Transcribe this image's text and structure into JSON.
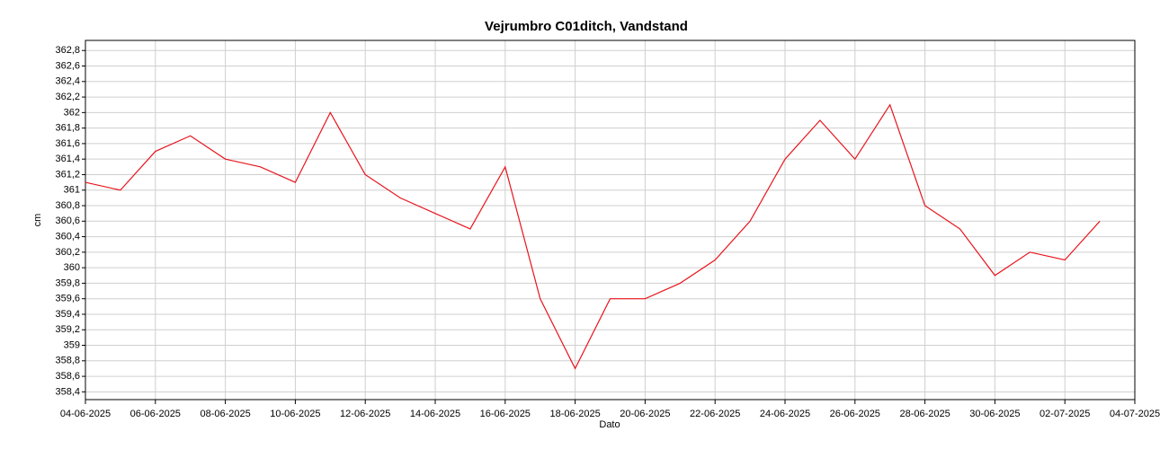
{
  "chart_data": {
    "type": "line",
    "title": "Vejrumbro C01ditch, Vandstand",
    "xlabel": "Dato",
    "ylabel": "cm",
    "x": [
      "04-06-2025",
      "05-06-2025",
      "06-06-2025",
      "07-06-2025",
      "08-06-2025",
      "09-06-2025",
      "10-06-2025",
      "11-06-2025",
      "12-06-2025",
      "13-06-2025",
      "14-06-2025",
      "15-06-2025",
      "16-06-2025",
      "17-06-2025",
      "18-06-2025",
      "19-06-2025",
      "20-06-2025",
      "21-06-2025",
      "22-06-2025",
      "23-06-2025",
      "24-06-2025",
      "25-06-2025",
      "26-06-2025",
      "27-06-2025",
      "28-06-2025",
      "29-06-2025",
      "30-06-2025",
      "01-07-2025",
      "02-07-2025",
      "03-07-2025"
    ],
    "series": [
      {
        "color": "#e8141c",
        "values": [
          361.1,
          361.0,
          361.5,
          361.7,
          361.4,
          361.3,
          361.1,
          362.0,
          361.2,
          360.9,
          360.7,
          360.5,
          361.3,
          359.6,
          358.7,
          359.6,
          359.6,
          359.8,
          360.1,
          360.6,
          361.4,
          361.9,
          361.4,
          362.1,
          360.8,
          360.5,
          359.9,
          360.2,
          360.1,
          360.6
        ]
      }
    ],
    "xlim": [
      "04-06-2025",
      "04-07-2025"
    ],
    "xticks": [
      "04-06-2025",
      "06-06-2025",
      "08-06-2025",
      "10-06-2025",
      "12-06-2025",
      "14-06-2025",
      "16-06-2025",
      "18-06-2025",
      "20-06-2025",
      "22-06-2025",
      "24-06-2025",
      "26-06-2025",
      "28-06-2025",
      "30-06-2025",
      "02-07-2025",
      "04-07-2025"
    ],
    "ylim": [
      358.3,
      362.93
    ],
    "yticks": [
      {
        "value": 358.4,
        "label": "358,4"
      },
      {
        "value": 358.6,
        "label": "358,6"
      },
      {
        "value": 358.8,
        "label": "358,8"
      },
      359,
      {
        "value": 359.2,
        "label": "359,2"
      },
      {
        "value": 359.4,
        "label": "359,4"
      },
      {
        "value": 359.6,
        "label": "359,6"
      },
      {
        "value": 359.8,
        "label": "359,8"
      },
      360,
      {
        "value": 360.2,
        "label": "360,2"
      },
      {
        "value": 360.4,
        "label": "360,4"
      },
      {
        "value": 360.6,
        "label": "360,6"
      },
      {
        "value": 360.8,
        "label": "360,8"
      },
      361,
      {
        "value": 361.2,
        "label": "361,2"
      },
      {
        "value": 361.4,
        "label": "361,4"
      },
      {
        "value": 361.6,
        "label": "361,6"
      },
      {
        "value": 361.8,
        "label": "361,8"
      },
      362,
      {
        "value": 362.2,
        "label": "362,2"
      },
      {
        "value": 362.4,
        "label": "362,4"
      },
      {
        "value": 362.6,
        "label": "362,6"
      },
      {
        "value": 362.8,
        "label": "362,8"
      }
    ],
    "grid": true
  }
}
